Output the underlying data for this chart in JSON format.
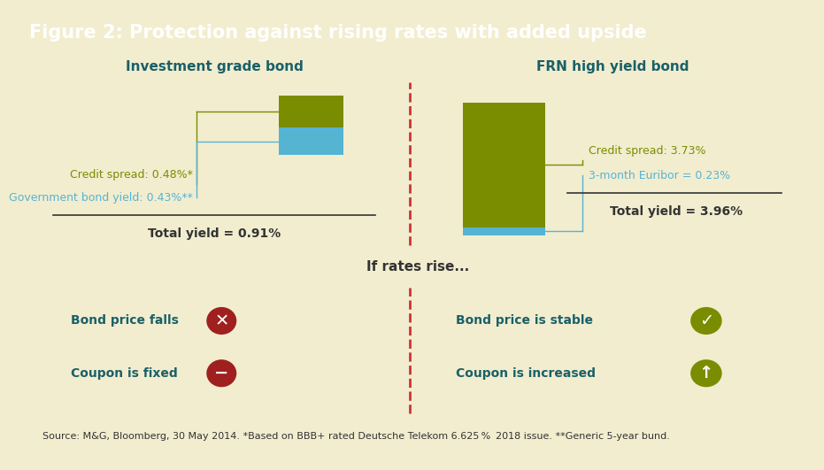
{
  "title": "Figure 2: Protection against rising rates with added upside",
  "title_bg": "#1a6068",
  "title_color": "#ffffff",
  "bg_color": "#f2edcf",
  "panel_bg": "#ffffff",
  "border_color": "#7aab9b",
  "left_title": "Investment grade bond",
  "right_title": "FRN high yield bond",
  "ig_credit_spread": 0.48,
  "ig_gov_yield": 0.43,
  "ig_total_yield": 0.91,
  "ig_credit_label": "Credit spread: 0.48%*",
  "ig_gov_label": "Government bond yield: 0.43%**",
  "ig_total_label": "Total yield = 0.91%",
  "frn_credit_spread": 3.73,
  "frn_euribor": 0.23,
  "frn_total_yield": 3.96,
  "frn_credit_label": "Credit spread: 3.73%",
  "frn_euribor_label": "3-month Euribor = 0.23%",
  "frn_total_label": "Total yield = 3.96%",
  "olive_color": "#7a8c00",
  "sky_color": "#56b4d3",
  "if_rates_text": "If rates rise...",
  "left_bad1": "Bond price falls",
  "left_bad2": "Coupon is fixed",
  "right_good1": "Bond price is stable",
  "right_good2": "Coupon is increased",
  "red_icon": "#a02020",
  "green_icon": "#7a8c00",
  "text_teal": "#1a6068",
  "source_text": "Source: M&G, Bloomberg, 30 May 2014. *Based on BBB+ rated Deutsche Telekom 6.625 %  2018 issue. **Generic 5-year bund."
}
